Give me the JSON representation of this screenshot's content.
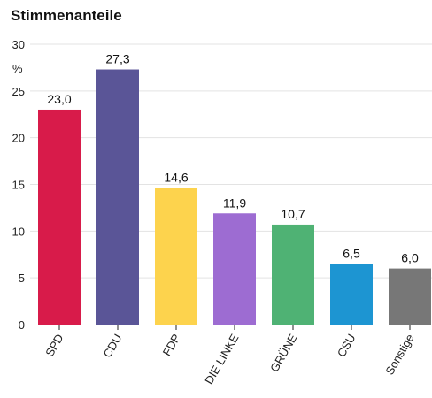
{
  "chart_data": {
    "type": "bar",
    "title": "Stimmenanteile",
    "ylabel": "%",
    "xlabel": "",
    "categories": [
      "SPD",
      "CDU",
      "FDP",
      "DIE LINKE",
      "GRÜNE",
      "CSU",
      "Sonstige"
    ],
    "values": [
      23.0,
      27.3,
      14.6,
      11.9,
      10.7,
      6.5,
      6.0
    ],
    "value_labels": [
      "23,0",
      "27,3",
      "14,6",
      "11,9",
      "10,7",
      "6,5",
      "6,0"
    ],
    "colors": [
      "#d81b4a",
      "#5a5597",
      "#fdd34d",
      "#9d6cd2",
      "#4fb274",
      "#1d95d2",
      "#777777"
    ],
    "yticks": [
      0,
      5,
      10,
      15,
      20,
      25,
      30
    ],
    "ylim": [
      0,
      30
    ],
    "grid": true,
    "legend": "none"
  }
}
